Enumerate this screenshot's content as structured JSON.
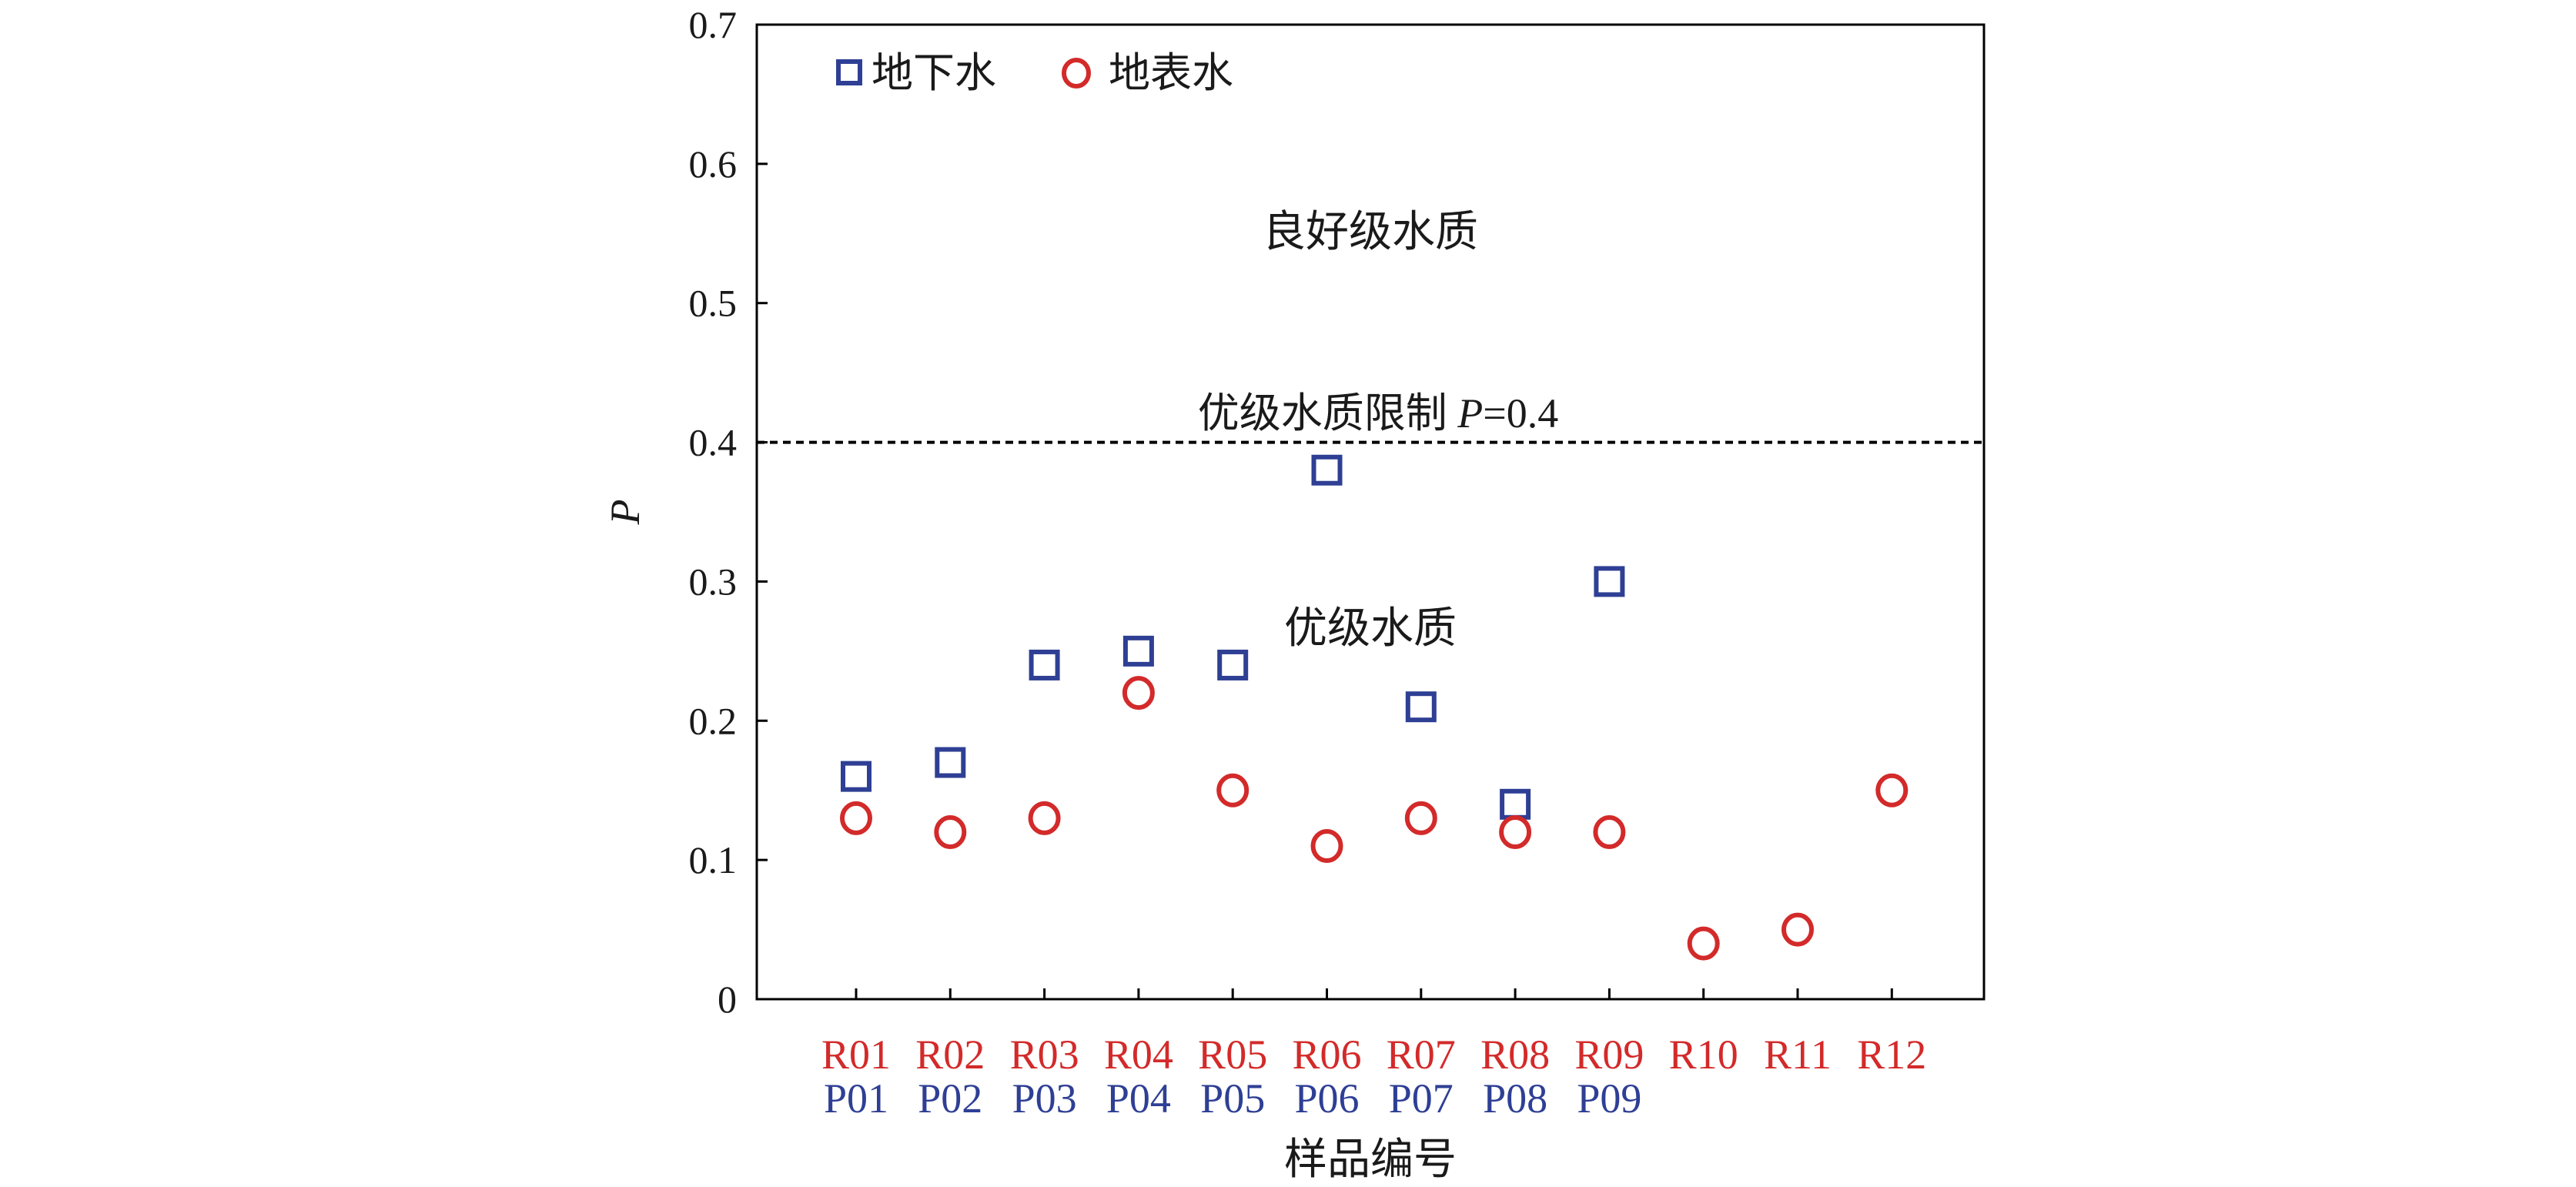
{
  "chart_data": {
    "type": "scatter",
    "title": "",
    "xlabel": "样品编号",
    "ylabel": "P",
    "ylim": [
      0,
      0.7
    ],
    "yticks": [
      "0",
      "0.1",
      "0.2",
      "0.3",
      "0.4",
      "0.5",
      "0.6",
      "0.7"
    ],
    "categories_surface": [
      "R01",
      "R02",
      "R03",
      "R04",
      "R05",
      "R06",
      "R07",
      "R08",
      "R09",
      "R10",
      "R11",
      "R12"
    ],
    "categories_ground": [
      "P01",
      "P02",
      "P03",
      "P04",
      "P05",
      "P06",
      "P07",
      "P08",
      "P09"
    ],
    "series": [
      {
        "name": "地下水",
        "marker": "square",
        "color": "#2e3f94",
        "values": [
          0.16,
          0.17,
          0.24,
          0.25,
          0.24,
          0.38,
          0.21,
          0.14,
          0.3
        ]
      },
      {
        "name": "地表水",
        "marker": "circle",
        "color": "#d32a2a",
        "values": [
          0.13,
          0.12,
          0.13,
          0.22,
          0.15,
          0.11,
          0.13,
          0.12,
          0.12,
          0.04,
          0.05,
          0.15
        ]
      }
    ],
    "threshold": {
      "value": 0.4,
      "label_prefix": "优级水质限制 ",
      "label_var": "P",
      "label_suffix": "=0.4"
    },
    "annotations": [
      "良好级水质",
      "优级水质"
    ],
    "legend_position": "top-left"
  }
}
